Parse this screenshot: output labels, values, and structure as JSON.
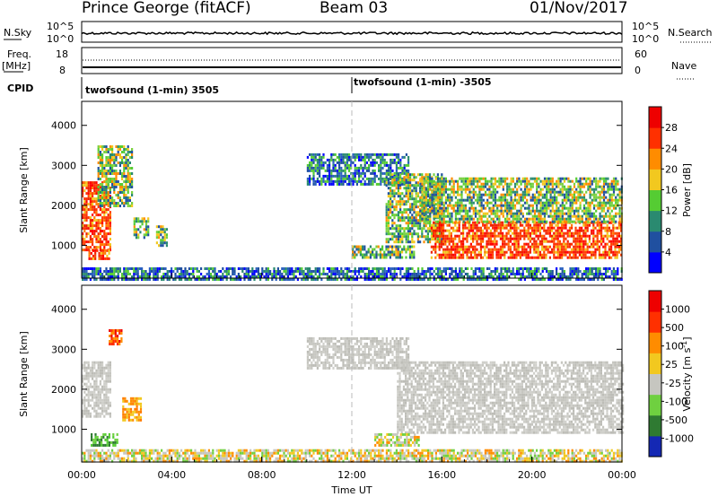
{
  "header": {
    "station": "Prince George (fitACF)",
    "beam": "Beam 03",
    "date": "01/Nov/2017"
  },
  "params": {
    "nsky_label": "N.Sky",
    "nsearch_label": "N.Search",
    "nsky_ticks": [
      "10^5",
      "10^0"
    ],
    "freq_label": "Freq.",
    "freq_unit": "[MHz]",
    "freq_ticks": [
      "18",
      "8"
    ],
    "nave_label": "Nave",
    "nave_ticks": [
      "60",
      "0"
    ],
    "cpid_label": "CPID",
    "cpid_1": "twofsound (1-min) 3505",
    "cpid_2": "twofsound (1-min) -3505",
    "cpid_change_hour": 12
  },
  "chart_data": [
    {
      "type": "heatmap",
      "panel": "power",
      "ylabel": "Slant Range [km]",
      "ylim": [
        180,
        4600
      ],
      "yticks": [
        "4000",
        "3000",
        "2000",
        "1000"
      ],
      "ytick_values": [
        4000,
        3000,
        2000,
        1000
      ],
      "xlim": [
        0,
        24
      ],
      "colorbar_label": "Power [dB]",
      "colorbar_ticks": [
        "28",
        "24",
        "20",
        "16",
        "12",
        "8",
        "4"
      ],
      "colorbar_colors": [
        "#0000ff",
        "#2050a0",
        "#2a8a70",
        "#55cc33",
        "#f2c81f",
        "#ff8c00",
        "#ff3000",
        "#ee0000"
      ],
      "echo_regions": [
        {
          "t0": 0.0,
          "t1": 1.3,
          "r0": 900,
          "r1": 2600,
          "level": "high"
        },
        {
          "t0": 0.3,
          "t1": 1.2,
          "r0": 650,
          "r1": 900,
          "level": "high"
        },
        {
          "t0": 0.7,
          "t1": 2.2,
          "r0": 2000,
          "r1": 3500,
          "level": "mid"
        },
        {
          "t0": 2.3,
          "t1": 3.0,
          "r0": 1200,
          "r1": 1700,
          "level": "mid"
        },
        {
          "t0": 3.3,
          "t1": 3.8,
          "r0": 1000,
          "r1": 1500,
          "level": "mid"
        },
        {
          "t0": 10.0,
          "t1": 14.5,
          "r0": 2500,
          "r1": 3300,
          "level": "low"
        },
        {
          "t0": 12.0,
          "t1": 14.8,
          "r0": 700,
          "r1": 1000,
          "level": "mid"
        },
        {
          "t0": 13.5,
          "t1": 16.0,
          "r0": 1100,
          "r1": 2800,
          "level": "mid"
        },
        {
          "t0": 15.5,
          "t1": 24.0,
          "r0": 700,
          "r1": 1600,
          "level": "high"
        },
        {
          "t0": 15.0,
          "t1": 24.0,
          "r0": 1600,
          "r1": 2700,
          "level": "mid"
        },
        {
          "t0": 0.0,
          "t1": 24.0,
          "r0": 180,
          "r1": 450,
          "level": "low"
        }
      ]
    },
    {
      "type": "heatmap",
      "panel": "velocity",
      "ylabel": "Slant Range [km]",
      "xlabel": "Time UT",
      "ylim": [
        180,
        4600
      ],
      "yticks": [
        "4000",
        "3000",
        "2000",
        "1000"
      ],
      "ytick_values": [
        4000,
        3000,
        2000,
        1000
      ],
      "xlim": [
        0,
        24
      ],
      "xticks": [
        "00:00",
        "04:00",
        "08:00",
        "12:00",
        "16:00",
        "20:00",
        "00:00"
      ],
      "colorbar_label": "Velocity [m s^-1]",
      "colorbar_ticks": [
        "1000",
        "500",
        "100",
        "25",
        "-25",
        "-100",
        "-500",
        "-1000"
      ],
      "colorbar_colors": [
        "#1428b4",
        "#2f7a32",
        "#6fd040",
        "#c6c6c0",
        "#f2c81f",
        "#ff8c00",
        "#ff3000",
        "#ee0000"
      ],
      "echo_regions": [
        {
          "t0": 0.0,
          "t1": 1.3,
          "r0": 1300,
          "r1": 2700,
          "level": "grey"
        },
        {
          "t0": 1.2,
          "t1": 1.8,
          "r0": 3100,
          "r1": 3500,
          "level": "red"
        },
        {
          "t0": 1.8,
          "t1": 2.6,
          "r0": 1200,
          "r1": 1800,
          "level": "orange"
        },
        {
          "t0": 0.4,
          "t1": 1.6,
          "r0": 600,
          "r1": 900,
          "level": "green"
        },
        {
          "t0": 10.0,
          "t1": 14.5,
          "r0": 2500,
          "r1": 3300,
          "level": "grey"
        },
        {
          "t0": 14.0,
          "t1": 24.0,
          "r0": 900,
          "r1": 2700,
          "level": "grey"
        },
        {
          "t0": 13.0,
          "t1": 15.0,
          "r0": 600,
          "r1": 900,
          "level": "mixed"
        },
        {
          "t0": 0.0,
          "t1": 24.0,
          "r0": 180,
          "r1": 500,
          "level": "mixed"
        }
      ]
    }
  ]
}
